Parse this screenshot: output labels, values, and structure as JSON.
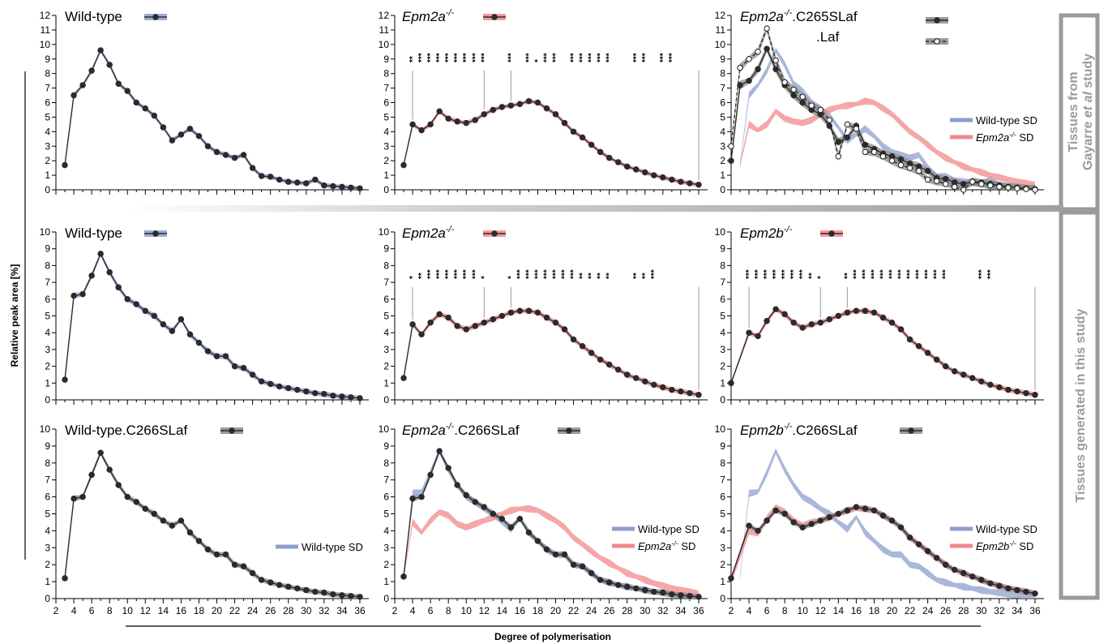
{
  "figure": {
    "ylabel": "Relative peak area [%]",
    "xlabel": "Degree of polymerisation",
    "side_top_line1": "Tissues from",
    "side_top_line2_pre": "Gayarre ",
    "side_top_line2_em": "et al",
    "side_top_line2_post": " study",
    "side_bottom": "Tissues generated in this study",
    "x_ticks": [
      "2",
      "4",
      "6",
      "8",
      "10",
      "12",
      "14",
      "16",
      "18",
      "20",
      "22",
      "24",
      "26",
      "28",
      "30",
      "32",
      "34",
      "36"
    ],
    "colors": {
      "wt": "#8c9fcf",
      "epm": "#f2888c",
      "laf": "#8a8a8a",
      "line": "#2b2b2b"
    }
  },
  "chart_data": [
    {
      "type": "line",
      "title": "Wild-type",
      "ylim": [
        0,
        12
      ],
      "series": [
        {
          "name": "Wild-type",
          "x": [
            3,
            4,
            5,
            6,
            7,
            8,
            9,
            10,
            11,
            12,
            13,
            14,
            15,
            16,
            17,
            18,
            19,
            20,
            21,
            22,
            23,
            24,
            25,
            26,
            27,
            28,
            29,
            30,
            31,
            32,
            33,
            34,
            35,
            36
          ],
          "values": [
            1.7,
            6.5,
            7.2,
            8.2,
            9.6,
            8.6,
            7.3,
            6.8,
            6.0,
            5.6,
            5.1,
            4.3,
            3.4,
            3.8,
            4.2,
            3.7,
            3.0,
            2.6,
            2.4,
            2.2,
            2.4,
            1.5,
            0.95,
            0.9,
            0.7,
            0.55,
            0.5,
            0.45,
            0.7,
            0.3,
            0.25,
            0.2,
            0.15,
            0.1
          ]
        }
      ]
    },
    {
      "type": "line",
      "title": "Epm2a-/-",
      "ylim": [
        0,
        12
      ],
      "significance": [
        "**",
        "***",
        "***",
        "***",
        "***",
        "***",
        "***",
        "***",
        "***",
        "***",
        "***",
        "*",
        "***",
        "***",
        "***",
        "***",
        "***",
        "***",
        "***",
        "***",
        "***",
        "***",
        "***"
      ],
      "series": [
        {
          "name": "Epm2a-/-",
          "x": [
            3,
            4,
            5,
            6,
            7,
            8,
            9,
            10,
            11,
            12,
            13,
            14,
            15,
            16,
            17,
            18,
            19,
            20,
            21,
            22,
            23,
            24,
            25,
            26,
            27,
            28,
            29,
            30,
            31,
            32,
            33,
            34,
            35,
            36
          ],
          "values": [
            1.7,
            4.5,
            4.1,
            4.5,
            5.4,
            4.9,
            4.7,
            4.6,
            4.8,
            5.2,
            5.5,
            5.7,
            5.8,
            5.9,
            6.1,
            6.0,
            5.6,
            5.2,
            4.6,
            4.0,
            3.6,
            3.1,
            2.6,
            2.2,
            1.9,
            1.6,
            1.4,
            1.2,
            1.0,
            0.85,
            0.7,
            0.55,
            0.45,
            0.35
          ]
        }
      ]
    },
    {
      "type": "line",
      "title": "Epm2a-/-.C265SLaf",
      "ylim": [
        0,
        12
      ],
      "series": [
        {
          "name": ".C265SLaf",
          "x": [
            2,
            3,
            4,
            5,
            6,
            7,
            8,
            9,
            10,
            11,
            12,
            13,
            14,
            15,
            16,
            17,
            18,
            19,
            20,
            21,
            22,
            23,
            24,
            25,
            26,
            27,
            28,
            29,
            30,
            31,
            32,
            33,
            34,
            35,
            36
          ],
          "values": [
            2.0,
            7.2,
            7.5,
            8.3,
            9.7,
            8.3,
            7.2,
            6.5,
            6.0,
            5.5,
            5.2,
            4.4,
            3.3,
            3.6,
            4.4,
            3.1,
            2.8,
            2.5,
            2.3,
            2.1,
            1.8,
            1.6,
            1.3,
            0.8,
            0.75,
            0.5,
            0.4,
            0.55,
            0.5,
            0.4,
            0.3,
            0.2,
            0.15,
            0.1,
            0.05
          ]
        },
        {
          "name": ".Laf",
          "x": [
            2,
            3,
            4,
            5,
            6,
            7,
            8,
            9,
            10,
            11,
            12,
            13,
            14,
            15,
            16,
            17,
            18,
            19,
            20,
            21,
            22,
            23,
            24,
            25,
            26,
            27,
            28,
            29,
            30,
            31,
            32,
            33,
            34,
            35,
            36
          ],
          "values": [
            3.0,
            8.4,
            9.0,
            9.5,
            11.1,
            8.9,
            7.4,
            6.9,
            6.4,
            5.8,
            5.5,
            4.8,
            2.3,
            4.5,
            4.2,
            2.6,
            2.6,
            2.3,
            2.0,
            1.7,
            1.5,
            1.3,
            0.7,
            0.6,
            0.4,
            0.2,
            0.0,
            0.55,
            0.4,
            0.3,
            0.2,
            0.15,
            0.1,
            0.05,
            0.0
          ]
        }
      ],
      "legend": [
        "Wild-type SD",
        "Epm2a-/- SD"
      ]
    },
    {
      "type": "line",
      "title": "Wild-type",
      "ylim": [
        0,
        10
      ],
      "series": [
        {
          "name": "Wild-type",
          "x": [
            3,
            4,
            5,
            6,
            7,
            8,
            9,
            10,
            11,
            12,
            13,
            14,
            15,
            16,
            17,
            18,
            19,
            20,
            21,
            22,
            23,
            24,
            25,
            26,
            27,
            28,
            29,
            30,
            31,
            32,
            33,
            34,
            35,
            36
          ],
          "values": [
            1.2,
            6.2,
            6.3,
            7.4,
            8.7,
            7.6,
            6.7,
            6.0,
            5.7,
            5.3,
            5.0,
            4.5,
            4.1,
            4.8,
            3.9,
            3.4,
            2.9,
            2.6,
            2.6,
            2.0,
            1.9,
            1.5,
            1.1,
            0.95,
            0.8,
            0.7,
            0.6,
            0.5,
            0.4,
            0.35,
            0.25,
            0.2,
            0.15,
            0.1
          ]
        }
      ]
    },
    {
      "type": "line",
      "title": "Epm2a-/-",
      "ylim": [
        0,
        10
      ],
      "significance": [
        "*",
        "**",
        "***",
        "***",
        "***",
        "***",
        "***",
        "***",
        "*",
        "*",
        "***",
        "***",
        "***",
        "***",
        "***",
        "***",
        "***",
        "**",
        "**",
        "**",
        "**",
        "**",
        "**",
        "***"
      ],
      "series": [
        {
          "name": "Epm2a-/-",
          "x": [
            3,
            4,
            5,
            6,
            7,
            8,
            9,
            10,
            11,
            12,
            13,
            14,
            15,
            16,
            17,
            18,
            19,
            20,
            21,
            22,
            23,
            24,
            25,
            26,
            27,
            28,
            29,
            30,
            31,
            32,
            33,
            34,
            35,
            36
          ],
          "values": [
            1.3,
            4.5,
            3.9,
            4.6,
            5.1,
            4.9,
            4.4,
            4.2,
            4.4,
            4.6,
            4.8,
            5.0,
            5.2,
            5.3,
            5.3,
            5.2,
            4.9,
            4.6,
            4.2,
            3.6,
            3.2,
            2.8,
            2.4,
            2.1,
            1.8,
            1.5,
            1.3,
            1.1,
            0.9,
            0.75,
            0.6,
            0.5,
            0.4,
            0.3
          ]
        }
      ]
    },
    {
      "type": "line",
      "title": "Epm2b-/-",
      "ylim": [
        0,
        10
      ],
      "significance": [
        "***",
        "***",
        "***",
        "***",
        "***",
        "***",
        "***",
        "**",
        "*",
        "**",
        "***",
        "***",
        "***",
        "***",
        "***",
        "***",
        "***",
        "***",
        "***",
        "***",
        "***",
        "***",
        "***"
      ],
      "series": [
        {
          "name": "Epm2b-/-",
          "x": [
            2,
            4,
            5,
            6,
            7,
            8,
            9,
            10,
            11,
            12,
            13,
            14,
            15,
            16,
            17,
            18,
            19,
            20,
            21,
            22,
            23,
            24,
            25,
            26,
            27,
            28,
            29,
            30,
            31,
            32,
            33,
            34,
            35,
            36
          ],
          "values": [
            1.0,
            4.0,
            3.8,
            4.7,
            5.4,
            5.1,
            4.6,
            4.3,
            4.5,
            4.6,
            4.8,
            5.0,
            5.2,
            5.3,
            5.3,
            5.2,
            4.9,
            4.6,
            4.2,
            3.6,
            3.2,
            2.8,
            2.4,
            2.0,
            1.7,
            1.5,
            1.3,
            1.1,
            0.9,
            0.75,
            0.6,
            0.5,
            0.4,
            0.3
          ]
        }
      ]
    },
    {
      "type": "line",
      "title": "Wild-type.C266SLaf",
      "ylim": [
        0,
        10
      ],
      "series": [
        {
          "name": "Wild-type.C266SLaf",
          "x": [
            3,
            4,
            5,
            6,
            7,
            8,
            9,
            10,
            11,
            12,
            13,
            14,
            15,
            16,
            17,
            18,
            19,
            20,
            21,
            22,
            23,
            24,
            25,
            26,
            27,
            28,
            29,
            30,
            31,
            32,
            33,
            34,
            35,
            36
          ],
          "values": [
            1.2,
            5.9,
            6.0,
            7.3,
            8.6,
            7.6,
            6.7,
            6.0,
            5.7,
            5.3,
            5.0,
            4.6,
            4.3,
            4.6,
            3.9,
            3.4,
            2.9,
            2.6,
            2.6,
            2.0,
            1.9,
            1.5,
            1.1,
            0.95,
            0.8,
            0.7,
            0.6,
            0.5,
            0.4,
            0.35,
            0.25,
            0.2,
            0.15,
            0.1
          ]
        }
      ],
      "legend": [
        "Wild-type SD"
      ]
    },
    {
      "type": "line",
      "title": "Epm2a-/-.C266SLaf",
      "ylim": [
        0,
        10
      ],
      "series": [
        {
          "name": "Epm2a-/-.C266SLaf",
          "x": [
            3,
            4,
            5,
            6,
            7,
            8,
            9,
            10,
            11,
            12,
            13,
            14,
            15,
            16,
            17,
            18,
            19,
            20,
            21,
            22,
            23,
            24,
            25,
            26,
            27,
            28,
            29,
            30,
            31,
            32,
            33,
            34,
            35,
            36
          ],
          "values": [
            1.3,
            5.9,
            6.0,
            7.3,
            8.7,
            7.7,
            6.7,
            6.1,
            5.7,
            5.4,
            5.0,
            4.7,
            4.2,
            4.7,
            3.9,
            3.4,
            2.9,
            2.6,
            2.6,
            2.0,
            1.9,
            1.5,
            1.1,
            0.95,
            0.8,
            0.7,
            0.6,
            0.5,
            0.4,
            0.35,
            0.25,
            0.2,
            0.15,
            0.1
          ]
        }
      ],
      "legend": [
        "Wild-type SD",
        "Epm2a-/- SD"
      ]
    },
    {
      "type": "line",
      "title": "Epm2b-/-.C266SLaf",
      "ylim": [
        0,
        10
      ],
      "series": [
        {
          "name": "Epm2b-/-.C266SLaf",
          "x": [
            2,
            4,
            5,
            6,
            7,
            8,
            9,
            10,
            11,
            12,
            13,
            14,
            15,
            16,
            17,
            18,
            19,
            20,
            21,
            22,
            23,
            24,
            25,
            26,
            27,
            28,
            29,
            30,
            31,
            32,
            33,
            34,
            35,
            36
          ],
          "values": [
            1.2,
            4.3,
            4.0,
            4.6,
            5.2,
            5.0,
            4.5,
            4.2,
            4.4,
            4.6,
            4.8,
            5.0,
            5.2,
            5.4,
            5.3,
            5.2,
            4.9,
            4.6,
            4.2,
            3.6,
            3.2,
            2.8,
            2.4,
            2.0,
            1.7,
            1.5,
            1.3,
            1.1,
            0.9,
            0.75,
            0.6,
            0.5,
            0.4,
            0.3
          ]
        }
      ],
      "legend": [
        "Wild-type SD",
        "Epm2b-/- SD"
      ]
    }
  ]
}
